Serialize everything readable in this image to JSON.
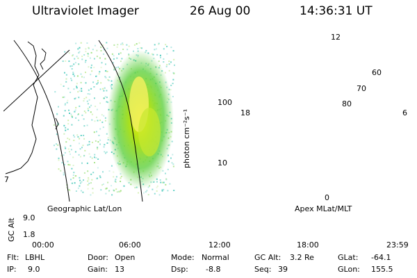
{
  "header": {
    "instrument": "Ultraviolet Imager",
    "date": "26 Aug 00",
    "time": "14:36:31 UT"
  },
  "colorbar": {
    "label": "photon cm⁻²s⁻¹",
    "ticks": [
      "100",
      "10"
    ]
  },
  "polar_plot": {
    "mlt_labels": {
      "top": "12",
      "left": "18",
      "right": "6",
      "bottom": "0"
    },
    "lat_labels": [
      "60",
      "70",
      "80"
    ]
  },
  "panels": {
    "left_caption": "Geographic Lat/Lon",
    "right_caption": "Apex MLat/MLT",
    "map_edge_label": "7"
  },
  "altitude_plot": {
    "axis_label": "GC Alt",
    "y_ticks": [
      "9.0",
      "1.8"
    ],
    "x_ticks": [
      "00:00",
      "06:00",
      "12:00",
      "18:00",
      "23:59"
    ],
    "marker_color": "#cc0000"
  },
  "info": {
    "flt_label": "Flt:",
    "flt_value": "LBHL",
    "ip_label": "IP:",
    "ip_value": "9.0",
    "door_label": "Door:",
    "door_value": "Open",
    "gain_label": "Gain:",
    "gain_value": "13",
    "mode_label": "Mode:",
    "mode_value": "Normal",
    "dsp_label": "Dsp:",
    "dsp_value": "-8.8",
    "gcalt_label": "GC Alt:",
    "gcalt_value": "3.2 Re",
    "seq_label": "Seq:",
    "seq_value": "39",
    "glat_label": "GLat:",
    "glat_value": "-64.1",
    "glon_label": "GLon:",
    "glon_value": "155.5"
  }
}
